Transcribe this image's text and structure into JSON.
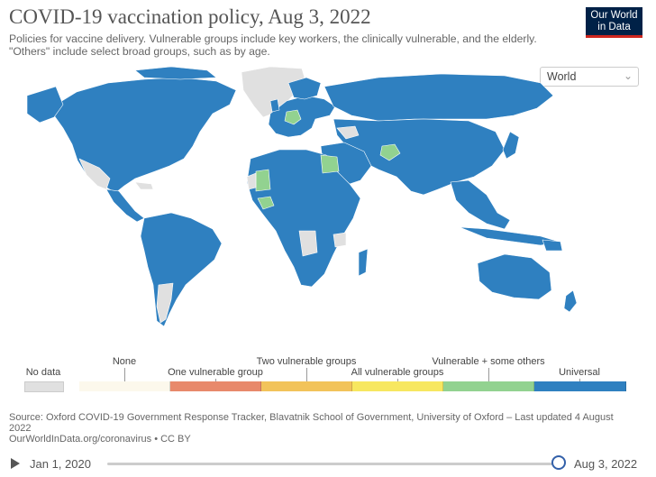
{
  "title": "COVID-19 vaccination policy, Aug 3, 2022",
  "subtitle": "Policies for vaccine delivery. Vulnerable groups include key workers, the clinically vulnerable, and the elderly. \"Others\" include select broad groups, such as by age.",
  "logo": "Our World in Data",
  "region_select": {
    "value": "World",
    "icon": "chevron-down-icon"
  },
  "colors": {
    "ocean": "#ffffff",
    "no_data": "#e0e0e0",
    "none": "#fcf8ec",
    "one_vulnerable": "#e8896b",
    "two_vulnerable": "#f2c35a",
    "all_vulnerable": "#f7e760",
    "vulnerable_some_others": "#92d290",
    "universal": "#2f80c0"
  },
  "legend": {
    "no_data": "No data",
    "categories": [
      "None",
      "One vulnerable group",
      "Two vulnerable groups",
      "All vulnerable groups",
      "Vulnerable + some others",
      "Universal"
    ]
  },
  "source": "Source: Oxford COVID-19 Government Response Tracker, Blavatnik School of Government, University of Oxford – Last updated 4 August 2022",
  "footer": "OurWorldInData.org/coronavirus • CC BY",
  "timeline": {
    "start": "Jan 1, 2020",
    "end": "Aug 3, 2022",
    "position": 1.0
  }
}
